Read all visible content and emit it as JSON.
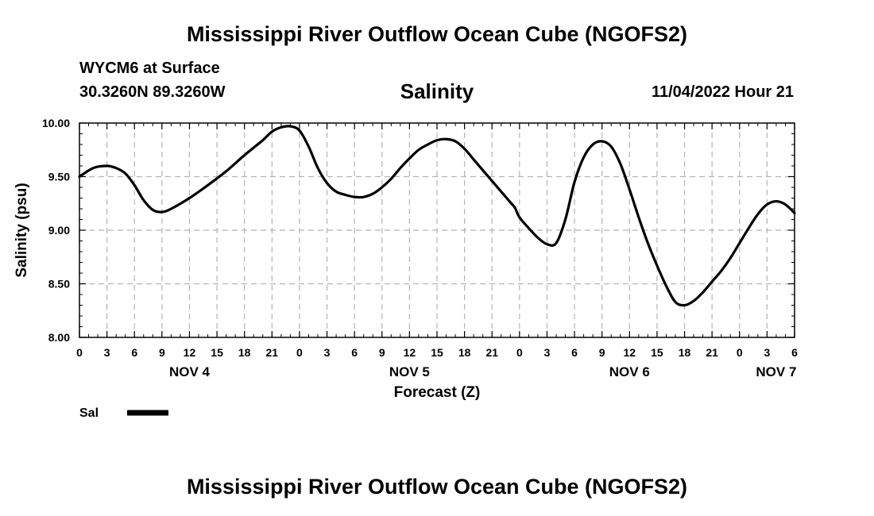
{
  "header": {
    "title": "Mississippi River Outflow Ocean Cube (NGOFS2)",
    "station": "WYCM6 at Surface",
    "coords": "30.3260N  89.3260W",
    "variable": "Salinity",
    "datetime": "11/04/2022 Hour 21"
  },
  "legend": {
    "label": "Sal"
  },
  "footer": {
    "title": "Mississippi River Outflow Ocean Cube (NGOFS2)"
  },
  "chart_data": {
    "type": "line",
    "title": "Salinity",
    "xlabel": "Forecast (Z)",
    "ylabel": "Salinity (psu)",
    "xlim": [
      0,
      78
    ],
    "ylim": [
      8.0,
      10.0
    ],
    "yticks": [
      8.0,
      8.5,
      9.0,
      9.5,
      10.0
    ],
    "ytick_labels": [
      "8.00",
      "8.50",
      "9.00",
      "9.50",
      "10.00"
    ],
    "xtick_hours": [
      0,
      3,
      6,
      9,
      12,
      15,
      18,
      21,
      24,
      27,
      30,
      33,
      36,
      39,
      42,
      45,
      48,
      51,
      54,
      57,
      60,
      63,
      66,
      69,
      72,
      75,
      78
    ],
    "xtick_labels": [
      "0",
      "3",
      "6",
      "9",
      "12",
      "15",
      "18",
      "21",
      "0",
      "3",
      "6",
      "9",
      "12",
      "15",
      "18",
      "21",
      "0",
      "3",
      "6",
      "9",
      "12",
      "15",
      "18",
      "21",
      "0",
      "3",
      "6"
    ],
    "day_labels": [
      {
        "hour": 12,
        "label": "NOV 4"
      },
      {
        "hour": 36,
        "label": "NOV 5"
      },
      {
        "hour": 60,
        "label": "NOV 6"
      },
      {
        "hour": 76,
        "label": "NOV 7"
      }
    ],
    "grid": true,
    "legend_position": "bottom-left",
    "series": [
      {
        "name": "Sal",
        "x": [
          0,
          1.5,
          3,
          4,
          5,
          6,
          7,
          8,
          9,
          10,
          12,
          14,
          16,
          18,
          20,
          21,
          22,
          23,
          24,
          25,
          26,
          27,
          28,
          29,
          30,
          31,
          32,
          33,
          34,
          35,
          36,
          37,
          38,
          39,
          40,
          41,
          42,
          43,
          44,
          45,
          46,
          47,
          47.5,
          48,
          49,
          50,
          51,
          52,
          53,
          54,
          55,
          56,
          57,
          58,
          59,
          60,
          61,
          62,
          63,
          64,
          65,
          66,
          67,
          68,
          69,
          70,
          71,
          72,
          73,
          74,
          75,
          76,
          77,
          78
        ],
        "values": [
          9.5,
          9.58,
          9.6,
          9.58,
          9.53,
          9.42,
          9.28,
          9.19,
          9.17,
          9.2,
          9.3,
          9.42,
          9.55,
          9.7,
          9.84,
          9.92,
          9.96,
          9.97,
          9.93,
          9.78,
          9.58,
          9.44,
          9.36,
          9.33,
          9.31,
          9.31,
          9.34,
          9.4,
          9.48,
          9.58,
          9.67,
          9.75,
          9.8,
          9.84,
          9.85,
          9.83,
          9.76,
          9.66,
          9.56,
          9.46,
          9.36,
          9.26,
          9.21,
          9.12,
          9.02,
          8.93,
          8.87,
          8.88,
          9.1,
          9.45,
          9.68,
          9.8,
          9.83,
          9.78,
          9.62,
          9.38,
          9.12,
          8.88,
          8.67,
          8.48,
          8.33,
          8.3,
          8.34,
          8.42,
          8.52,
          8.62,
          8.74,
          8.88,
          9.02,
          9.15,
          9.24,
          9.27,
          9.24,
          9.16
        ]
      }
    ]
  }
}
